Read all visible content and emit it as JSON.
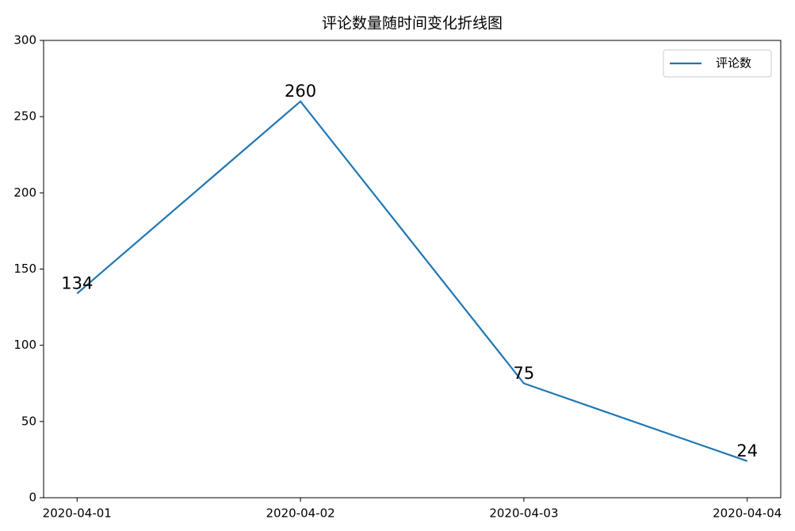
{
  "chart_data": {
    "type": "line",
    "title": "评论数量随时间变化折线图",
    "categories": [
      "2020-04-01",
      "2020-04-02",
      "2020-04-03",
      "2020-04-04"
    ],
    "series": [
      {
        "name": "评论数",
        "color": "#1f77b4",
        "values": [
          134,
          260,
          75,
          24
        ]
      }
    ],
    "ylim": [
      0,
      300
    ],
    "yticks": [
      0,
      50,
      100,
      150,
      200,
      250,
      300
    ],
    "grid": false,
    "legend": "upper-right",
    "data_labels": true
  }
}
